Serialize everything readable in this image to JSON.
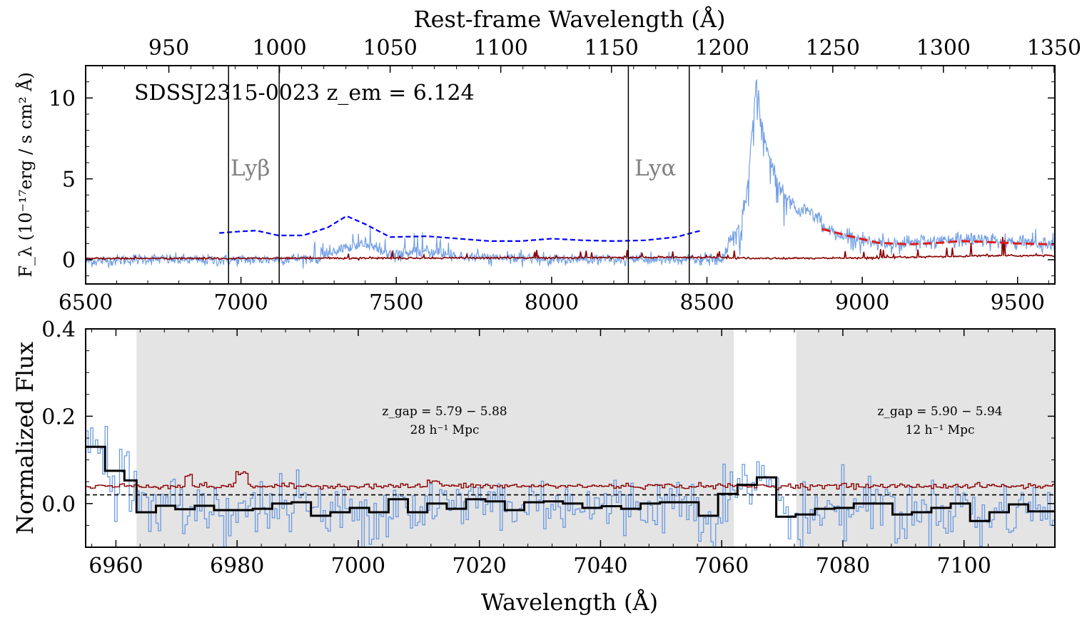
{
  "chart_data": [
    {
      "type": "line",
      "panel": "top",
      "title": "",
      "xlabel": "",
      "ylabel": "F_λ (10⁻¹⁷erg / s cm² Å)",
      "xlim": [
        6500,
        9620
      ],
      "ylim": [
        -1.5,
        12
      ],
      "x_ticks": [
        6500,
        7000,
        7500,
        8000,
        8500,
        9000,
        9500
      ],
      "y_ticks": [
        0,
        5,
        10
      ],
      "secondary_xaxis": {
        "label": "Rest-frame Wavelength (Å)",
        "ticks": [
          950,
          1000,
          1050,
          1100,
          1150,
          1200,
          1250,
          1300,
          1350
        ],
        "redshift": 6.124
      },
      "annotation": "SDSSJ2315-0023 z_em = 6.124",
      "vlines": [
        {
          "x": 6960,
          "label": "Lyβ"
        },
        {
          "x": 7123
        },
        {
          "x": 8247,
          "label": "Lyα"
        },
        {
          "x": 8443
        }
      ],
      "series": [
        {
          "name": "",
          "color": "#5b8fe0",
          "style": "flux",
          "points": [
            [
              6500,
              -0.1
            ],
            [
              6700,
              0.05
            ],
            [
              6900,
              -0.05
            ],
            [
              7100,
              0.02
            ],
            [
              7230,
              0.1
            ],
            [
              7300,
              0.4
            ],
            [
              7350,
              0.8
            ],
            [
              7400,
              1.0
            ],
            [
              7450,
              0.5
            ],
            [
              7500,
              0.3
            ],
            [
              7600,
              0.5
            ],
            [
              7700,
              0.2
            ],
            [
              7800,
              0.1
            ],
            [
              8000,
              0.05
            ],
            [
              8200,
              0.0
            ],
            [
              8400,
              0.0
            ],
            [
              8550,
              0.0
            ],
            [
              8580,
              1.2
            ],
            [
              8610,
              2.5
            ],
            [
              8630,
              4.5
            ],
            [
              8650,
              9.0
            ],
            [
              8660,
              11.0
            ],
            [
              8670,
              9.5
            ],
            [
              8690,
              7.0
            ],
            [
              8720,
              5.2
            ],
            [
              8760,
              3.8
            ],
            [
              8800,
              3.0
            ],
            [
              8840,
              2.9
            ],
            [
              8880,
              2.0
            ],
            [
              8920,
              1.6
            ],
            [
              8970,
              1.3
            ],
            [
              9050,
              1.05
            ],
            [
              9150,
              1.0
            ],
            [
              9250,
              1.15
            ],
            [
              9350,
              1.2
            ],
            [
              9450,
              1.1
            ],
            [
              9550,
              1.0
            ],
            [
              9620,
              0.95
            ]
          ]
        },
        {
          "name": "",
          "color": "#8b0000",
          "style": "error",
          "points": [
            [
              6500,
              0.08
            ],
            [
              7000,
              0.08
            ],
            [
              7500,
              0.1
            ],
            [
              8000,
              0.12
            ],
            [
              8500,
              0.15
            ],
            [
              8600,
              0.1
            ],
            [
              8700,
              0.08
            ],
            [
              9000,
              0.1
            ],
            [
              9300,
              0.2
            ],
            [
              9400,
              0.25
            ],
            [
              9620,
              0.25
            ]
          ]
        },
        {
          "name": "",
          "color": "#0000ff",
          "style": "continuum",
          "dashed": true,
          "points": [
            [
              6930,
              1.65
            ],
            [
              7000,
              1.75
            ],
            [
              7050,
              1.8
            ],
            [
              7120,
              1.5
            ],
            [
              7200,
              1.5
            ],
            [
              7280,
              2.0
            ],
            [
              7340,
              2.7
            ],
            [
              7400,
              2.2
            ],
            [
              7480,
              1.4
            ],
            [
              7600,
              1.45
            ],
            [
              7700,
              1.3
            ],
            [
              7800,
              1.15
            ],
            [
              7900,
              1.15
            ],
            [
              8000,
              1.3
            ],
            [
              8100,
              1.2
            ],
            [
              8200,
              1.15
            ],
            [
              8300,
              1.2
            ],
            [
              8400,
              1.4
            ],
            [
              8480,
              1.8
            ]
          ]
        },
        {
          "name": "",
          "color": "#e41a1c",
          "style": "fit",
          "dashed": true,
          "points": [
            [
              8870,
              1.9
            ],
            [
              8950,
              1.5
            ],
            [
              9050,
              1.05
            ],
            [
              9150,
              0.95
            ],
            [
              9250,
              1.05
            ],
            [
              9320,
              1.15
            ],
            [
              9400,
              1.1
            ],
            [
              9500,
              1.0
            ],
            [
              9620,
              0.95
            ]
          ]
        }
      ]
    },
    {
      "type": "line",
      "panel": "bottom",
      "title": "",
      "xlabel": "Wavelength (Å)",
      "ylabel": "Normalized Flux",
      "xlim": [
        6955,
        7115
      ],
      "ylim": [
        -0.1,
        0.4
      ],
      "x_ticks": [
        6960,
        6980,
        7000,
        7020,
        7040,
        7060,
        7080,
        7100
      ],
      "y_ticks": [
        0.0,
        0.2,
        0.4
      ],
      "threshold_line": 0.02,
      "shaded_regions": [
        {
          "x": [
            6963.4,
            7062.0
          ],
          "label_line1": "z_gap = 5.79 − 5.88",
          "label_line2": "28 h⁻¹ Mpc"
        },
        {
          "x": [
            7072.3,
            7115
          ],
          "label_line1": "z_gap = 5.90 − 5.94",
          "label_line2": "12 h⁻¹ Mpc"
        }
      ],
      "binned_flux": {
        "color": "#000000",
        "edges": [
          6955,
          6958.2,
          6961.4,
          6963.4,
          6966.6,
          6969.8,
          6973,
          6976.2,
          6979.4,
          6982.6,
          6985.8,
          6989,
          6992.2,
          6995.4,
          6998.6,
          7001.8,
          7005,
          7008.2,
          7011.4,
          7014.6,
          7017.8,
          7021,
          7024.2,
          7027.4,
          7030.6,
          7033.8,
          7037,
          7040.2,
          7043.4,
          7046.6,
          7049.8,
          7053,
          7056.2,
          7059.4,
          7062.6,
          7065.8,
          7069,
          7072.2,
          7075.4,
          7078.6,
          7081.8,
          7085,
          7088.2,
          7091.4,
          7094.6,
          7097.8,
          7101,
          7104.2,
          7107.4,
          7110.6,
          7115
        ],
        "values": [
          0.13,
          0.075,
          0.053,
          -0.02,
          -0.005,
          -0.013,
          -0.005,
          -0.015,
          -0.015,
          -0.012,
          0.0,
          0.003,
          -0.028,
          -0.02,
          -0.01,
          -0.02,
          0.01,
          -0.02,
          0.0,
          -0.012,
          0.01,
          0.005,
          -0.015,
          0.003,
          0.005,
          0.0,
          -0.01,
          -0.006,
          -0.012,
          0.0,
          0.003,
          0.003,
          -0.028,
          0.022,
          0.043,
          0.06,
          -0.03,
          -0.025,
          -0.012,
          -0.01,
          0.0,
          0.0,
          -0.025,
          -0.02,
          -0.01,
          0.0,
          -0.04,
          -0.02,
          -0.002,
          -0.018
        ]
      },
      "error_level": 0.04,
      "raw_flux_color": "#5b8fe0",
      "error_color": "#8b0000"
    }
  ]
}
